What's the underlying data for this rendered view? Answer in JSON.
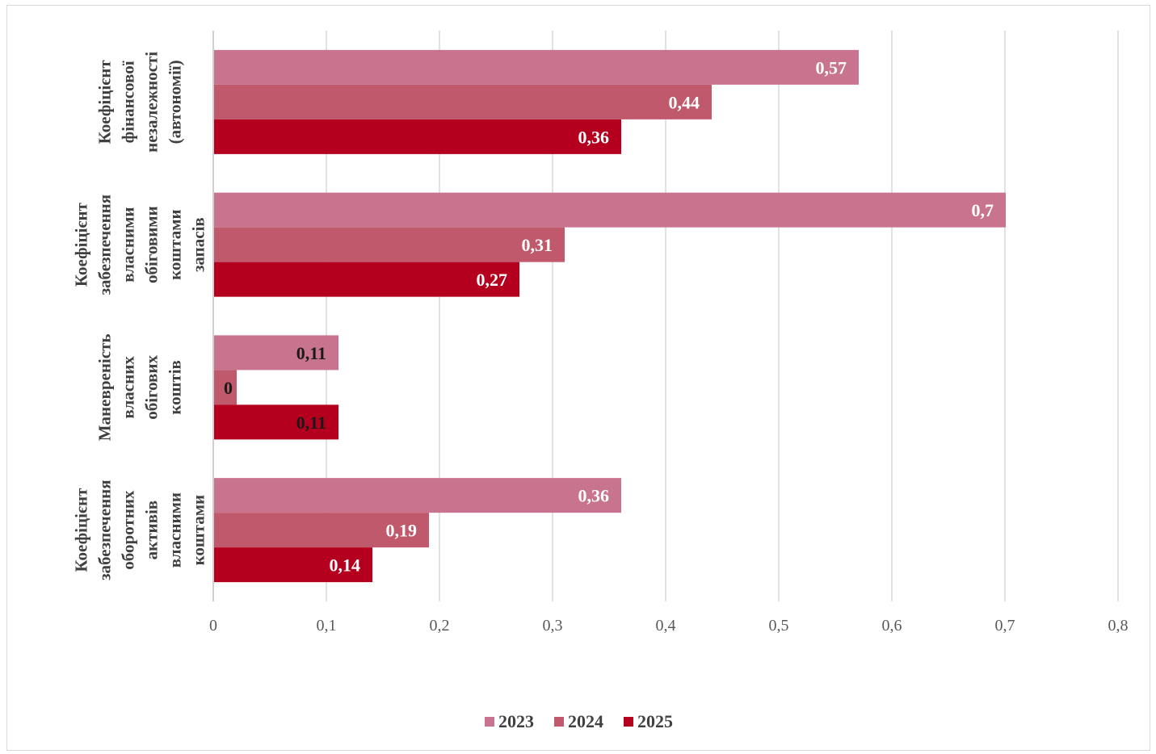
{
  "chart_data": {
    "type": "bar",
    "orientation": "horizontal",
    "categories": [
      [
        "Коефіцієнт",
        "фінансової",
        "незалежності",
        "(автономії)"
      ],
      [
        "Коефіцієнт",
        "забезпечення",
        "власними",
        "обіговими",
        "коштами",
        "запасів"
      ],
      [
        "Маневреність",
        "власних",
        "обігових",
        "коштів"
      ],
      [
        "Коефіцієнт",
        "забезпечення",
        "оборотних",
        "активів",
        "власними",
        "коштами"
      ]
    ],
    "series": [
      {
        "name": "2023",
        "color": "#c9748e",
        "values": [
          0.57,
          0.7,
          0.11,
          0.36
        ],
        "labels": [
          "0,57",
          "0,7",
          "0,11",
          "0,36"
        ]
      },
      {
        "name": "2024",
        "color": "#c0596c",
        "values": [
          0.44,
          0.31,
          0.02,
          0.19
        ],
        "labels": [
          "0,44",
          "0,31",
          "0",
          "0,19"
        ]
      },
      {
        "name": "2025",
        "color": "#b4001e",
        "values": [
          0.36,
          0.27,
          0.11,
          0.14
        ],
        "labels": [
          "0,36",
          "0,27",
          "0,11",
          "0,14"
        ]
      }
    ],
    "xlim": [
      0,
      0.8
    ],
    "xticks": [
      0,
      0.1,
      0.2,
      0.3,
      0.4,
      0.5,
      0.6,
      0.7,
      0.8
    ],
    "xtick_labels": [
      "0",
      "0,1",
      "0,2",
      "0,3",
      "0,4",
      "0,5",
      "0,6",
      "0,7",
      "0,8"
    ],
    "grid": "vertical",
    "legend": "bottom",
    "title": "",
    "xlabel": "",
    "ylabel": ""
  }
}
